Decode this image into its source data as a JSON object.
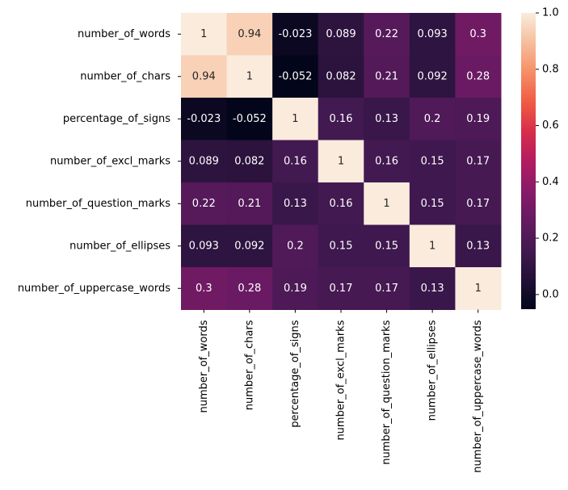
{
  "chart_data": {
    "type": "heatmap",
    "row_labels": [
      "number_of_words",
      "number_of_chars",
      "percentage_of_signs",
      "number_of_excl_marks",
      "number_of_question_marks",
      "number_of_ellipses",
      "number_of_uppercase_words"
    ],
    "col_labels": [
      "number_of_words",
      "number_of_chars",
      "percentage_of_signs",
      "number_of_excl_marks",
      "number_of_question_marks",
      "number_of_ellipses",
      "number_of_uppercase_words"
    ],
    "values": [
      [
        1,
        0.94,
        -0.023,
        0.089,
        0.22,
        0.093,
        0.3
      ],
      [
        0.94,
        1,
        -0.052,
        0.082,
        0.21,
        0.092,
        0.28
      ],
      [
        -0.023,
        -0.052,
        1,
        0.16,
        0.13,
        0.2,
        0.19
      ],
      [
        0.089,
        0.082,
        0.16,
        1,
        0.16,
        0.15,
        0.17
      ],
      [
        0.22,
        0.21,
        0.13,
        0.16,
        1,
        0.15,
        0.17
      ],
      [
        0.093,
        0.092,
        0.2,
        0.15,
        0.15,
        1,
        0.13
      ],
      [
        0.3,
        0.28,
        0.19,
        0.17,
        0.17,
        0.13,
        1
      ]
    ],
    "annotations": [
      [
        "1",
        "0.94",
        "-0.023",
        "0.089",
        "0.22",
        "0.093",
        "0.3"
      ],
      [
        "0.94",
        "1",
        "-0.052",
        "0.082",
        "0.21",
        "0.092",
        "0.28"
      ],
      [
        "-0.023",
        "-0.052",
        "1",
        "0.16",
        "0.13",
        "0.2",
        "0.19"
      ],
      [
        "0.089",
        "0.082",
        "0.16",
        "1",
        "0.16",
        "0.15",
        "0.17"
      ],
      [
        "0.22",
        "0.21",
        "0.13",
        "0.16",
        "1",
        "0.15",
        "0.17"
      ],
      [
        "0.093",
        "0.092",
        "0.2",
        "0.15",
        "0.15",
        "1",
        "0.13"
      ],
      [
        "0.3",
        "0.28",
        "0.19",
        "0.17",
        "0.17",
        "0.13",
        "1"
      ]
    ],
    "colormap": "rocket",
    "vmin": -0.052,
    "vmax": 1,
    "colorbar": {
      "ticks": [
        0.0,
        0.2,
        0.4,
        0.6,
        0.8,
        1.0
      ],
      "tick_labels": [
        "0.0",
        "0.2",
        "0.4",
        "0.6",
        "0.8",
        "1.0"
      ]
    }
  }
}
